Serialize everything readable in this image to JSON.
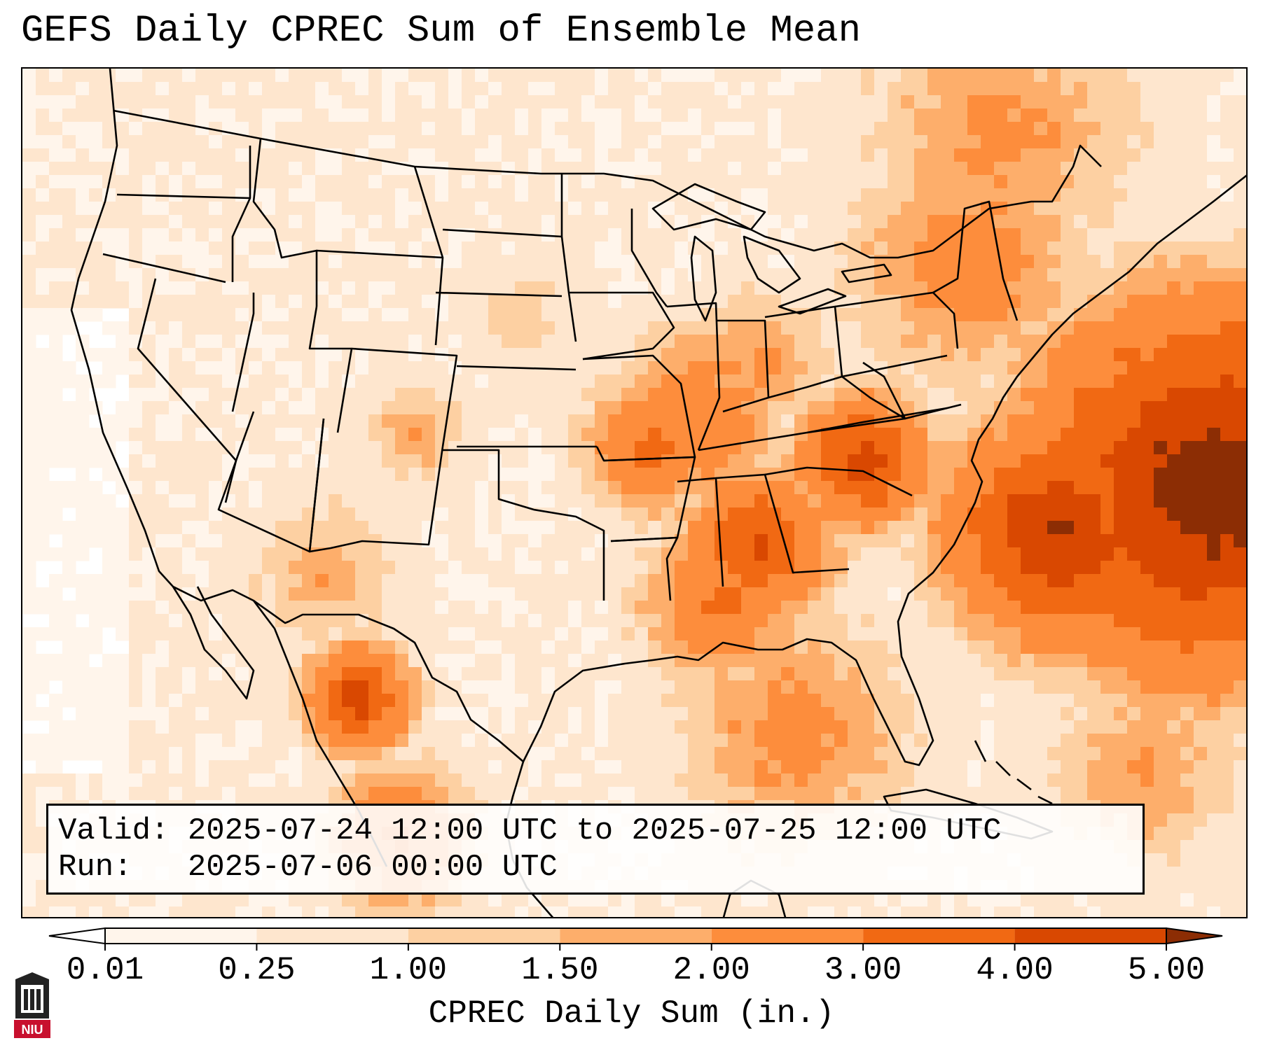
{
  "title": "GEFS Daily CPREC Sum of Ensemble Mean",
  "info": {
    "valid_label": "Valid:",
    "valid_value": "2025-07-24 12:00 UTC to 2025-07-25 12:00 UTC",
    "run_label": "Run:",
    "run_value": "2025-07-06 00:00 UTC"
  },
  "colorbar": {
    "label": "CPREC Daily Sum (in.)",
    "levels": [
      0.01,
      0.25,
      1.0,
      1.5,
      2.0,
      3.0,
      4.0,
      5.0
    ],
    "tick_labels": [
      "0.01",
      "0.25",
      "1.00",
      "1.50",
      "2.00",
      "3.00",
      "4.00",
      "5.00"
    ],
    "colors": [
      "#fff5eb",
      "#fee6ce",
      "#fdd0a2",
      "#fdae6b",
      "#fd8d3c",
      "#f16913",
      "#d94801",
      "#8c2d04"
    ],
    "under_color": "#ffffff",
    "over_color": "#8c2d04"
  },
  "map": {
    "basemap": "CONUS with Mexico and Caribbean",
    "land_color": "#fde3cc",
    "lines_color": "#000000"
  },
  "logo": {
    "text": "NIU",
    "color": "#c8102e"
  }
}
